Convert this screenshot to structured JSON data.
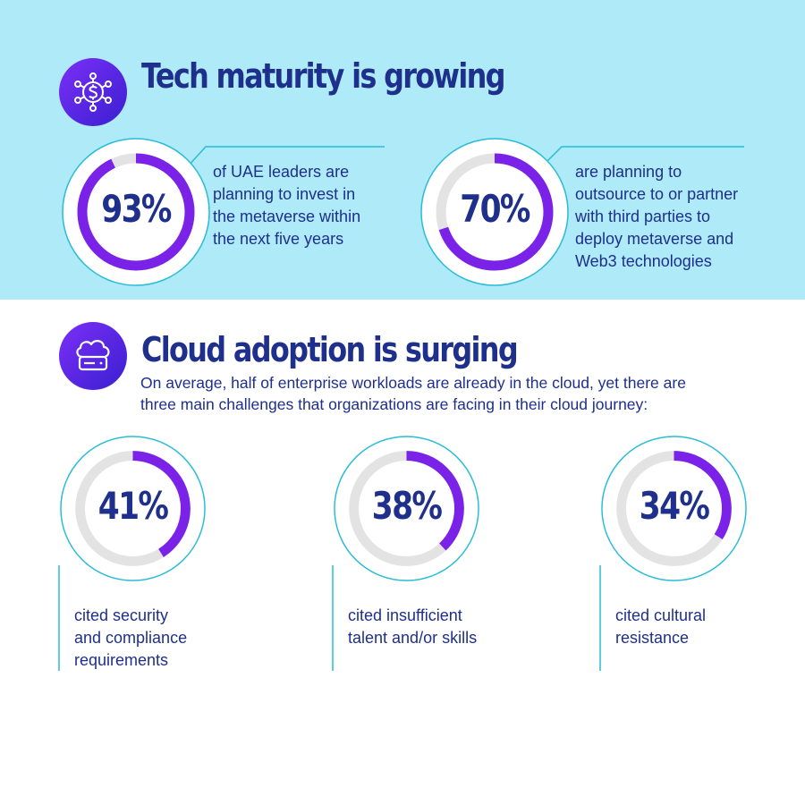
{
  "colors": {
    "navy": "#1e2f8c",
    "purple": "#7a22e8",
    "ring_gray": "#e3e3e3",
    "cyan_line": "#29bcd6",
    "top_background": "#aeeaf8"
  },
  "tech": {
    "icon": "dollar-network-icon",
    "title": "Tech maturity is growing",
    "stats": [
      {
        "value": "93%",
        "percent": 93,
        "text": [
          "of UAE leaders are",
          "planning to invest in",
          "the metaverse within",
          "the next five years"
        ]
      },
      {
        "value": "70%",
        "percent": 70,
        "text": [
          "are planning to",
          "outsource to or partner",
          "with third parties to",
          "deploy metaverse and",
          "Web3 technologies"
        ]
      }
    ]
  },
  "cloud": {
    "icon": "cloud-server-icon",
    "title": "Cloud adoption is surging",
    "intro": [
      "On average, half of enterprise workloads are already in the cloud, yet there are",
      "three main challenges that organizations are facing in their cloud journey:"
    ],
    "stats": [
      {
        "value": "41%",
        "percent": 41,
        "text": [
          "cited security",
          "and compliance",
          "requirements"
        ]
      },
      {
        "value": "38%",
        "percent": 38,
        "text": [
          "cited insufficient",
          "talent and/or skills"
        ]
      },
      {
        "value": "34%",
        "percent": 34,
        "text": [
          "cited cultural",
          "resistance"
        ]
      }
    ]
  }
}
